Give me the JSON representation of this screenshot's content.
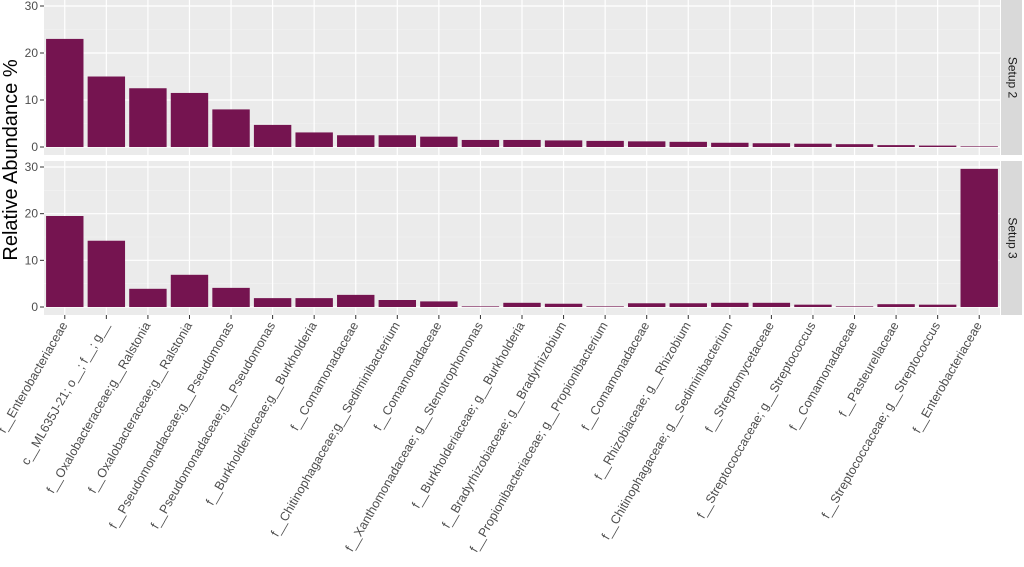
{
  "chart_data": {
    "type": "bar",
    "ylabel": "Relative Abundance %",
    "ylim": [
      0,
      30
    ],
    "yticks": [
      "0",
      "10",
      "20",
      "30"
    ],
    "grid": true,
    "bar_color": "#751450",
    "panel_bg": "#ebebeb",
    "strip_bg": "#d9d9d9",
    "categories": [
      "f__Enterobacteriaceae",
      "c__ML635J-21; o__; f__; g__",
      "f__Oxalobacteraceae;g__Ralstonia",
      "f__Oxalobacteraceae;g__Ralstonia",
      "f__Pseudomonadaceae;g__Pseudomonas",
      "f__Pseudomonadaceae;g__Pseudomonas",
      "f__Burkholderiaceae;g__Burkholderia",
      "f__Comamonadaceae",
      "f__Chitinophagaceae;g__Sediminibacterium",
      "f__Comamonadaceae",
      "f__Xanthomonadaceae; g__Stenotrophomonas",
      "f__Burkholderiaceae; g__Burkholderia",
      "f__Bradyrhizobiaceae; g__Bradyrhizobium",
      "f__Propionibacteriaceae; g__Propionibacterium",
      "f__Comamonadaceae",
      "f__Rhizobiaceae; g__Rhizobium",
      "f__Chitinophagaceae; g__Sediminibacterium",
      "f__Streptomycetaceae",
      "f__Streptococcaceae; g__Streptococcus",
      "f__Comamonadaceae",
      "f__Pasteurellaceae",
      "f__Streptococcaceae; g__Streptococcus",
      "f__Enterobacteriaceae"
    ],
    "panels": [
      {
        "name": "Setup 2",
        "values": [
          23,
          15,
          12.5,
          11.5,
          8,
          4.7,
          3.1,
          2.5,
          2.5,
          2.2,
          1.5,
          1.5,
          1.4,
          1.3,
          1.2,
          1.1,
          0.9,
          0.8,
          0.7,
          0.6,
          0.4,
          0.3,
          0.05
        ]
      },
      {
        "name": "Setup 3",
        "values": [
          19.5,
          14.2,
          3.9,
          6.9,
          4.1,
          1.9,
          1.9,
          2.6,
          1.5,
          1.2,
          0.1,
          0.9,
          0.7,
          0.1,
          0.8,
          0.8,
          0.9,
          0.9,
          0.5,
          0.1,
          0.6,
          0.5,
          29.6
        ]
      }
    ]
  }
}
